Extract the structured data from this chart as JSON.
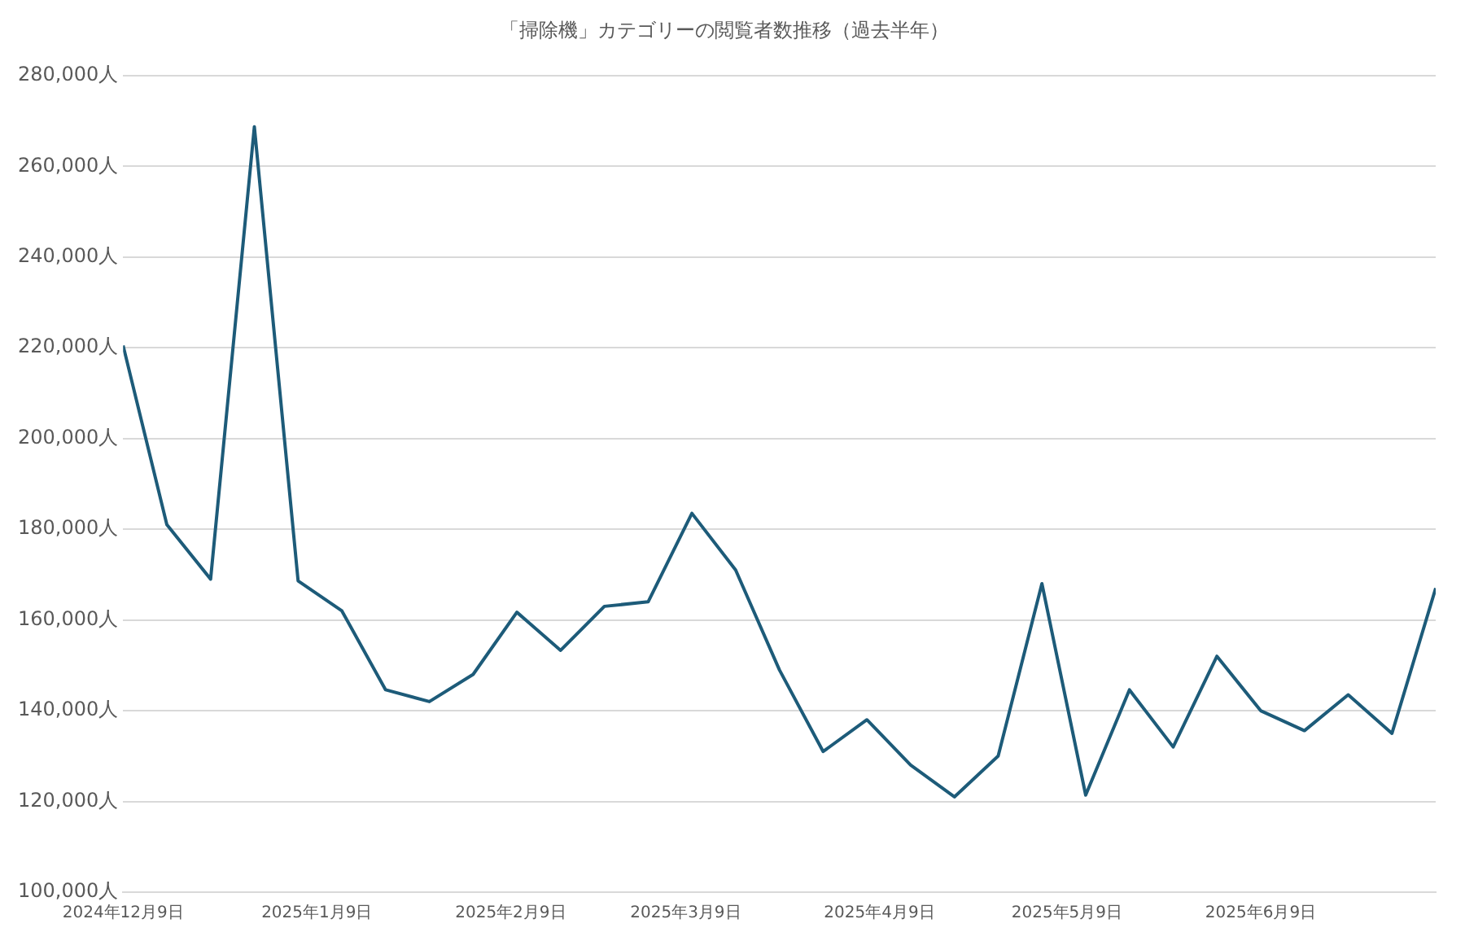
{
  "chart_data": {
    "type": "line",
    "title": "「掃除機」カテゴリーの閲覧者数推移（過去半年）",
    "x": [
      "2024-12-09",
      "2024-12-16",
      "2024-12-23",
      "2024-12-30",
      "2025-01-06",
      "2025-01-13",
      "2025-01-20",
      "2025-01-27",
      "2025-02-03",
      "2025-02-10",
      "2025-02-17",
      "2025-02-24",
      "2025-03-03",
      "2025-03-10",
      "2025-03-17",
      "2025-03-24",
      "2025-03-31",
      "2025-04-07",
      "2025-04-14",
      "2025-04-21",
      "2025-04-28",
      "2025-05-05",
      "2025-05-12",
      "2025-05-19",
      "2025-05-26",
      "2025-06-02",
      "2025-06-09",
      "2025-06-16",
      "2025-06-23",
      "2025-06-30",
      "2025-07-07"
    ],
    "series": [
      {
        "color": "#1d5b79",
        "values": [
          220500,
          181000,
          169000,
          268700,
          168600,
          162000,
          144600,
          142000,
          148000,
          161700,
          153300,
          163000,
          164000,
          183500,
          171000,
          149000,
          131000,
          138000,
          128000,
          121000,
          130000,
          168000,
          121400,
          144600,
          132000,
          152000,
          140000,
          135600,
          143500,
          135000,
          167000
        ]
      }
    ],
    "xlim": [
      "2024-12-09",
      "2025-07-07"
    ],
    "xticks": [
      {
        "value": "2024-12-09",
        "label": "2024年12月9日"
      },
      {
        "value": "2025-01-09",
        "label": "2025年1月9日"
      },
      {
        "value": "2025-02-09",
        "label": "2025年2月9日"
      },
      {
        "value": "2025-03-09",
        "label": "2025年3月9日"
      },
      {
        "value": "2025-04-09",
        "label": "2025年4月9日"
      },
      {
        "value": "2025-05-09",
        "label": "2025年5月9日"
      },
      {
        "value": "2025-06-09",
        "label": "2025年6月9日"
      }
    ],
    "ylim": [
      100000,
      280000
    ],
    "yticks": [
      {
        "value": 100000,
        "label": "100,000人"
      },
      {
        "value": 120000,
        "label": "120,000人"
      },
      {
        "value": 140000,
        "label": "140,000人"
      },
      {
        "value": 160000,
        "label": "160,000人"
      },
      {
        "value": 180000,
        "label": "180,000人"
      },
      {
        "value": 200000,
        "label": "200,000人"
      },
      {
        "value": 220000,
        "label": "220,000人"
      },
      {
        "value": 240000,
        "label": "240,000人"
      },
      {
        "value": 260000,
        "label": "260,000人"
      },
      {
        "value": 280000,
        "label": "280,000人"
      }
    ],
    "grid": "y",
    "legend": false,
    "marker": "none",
    "line_style": "solid"
  }
}
